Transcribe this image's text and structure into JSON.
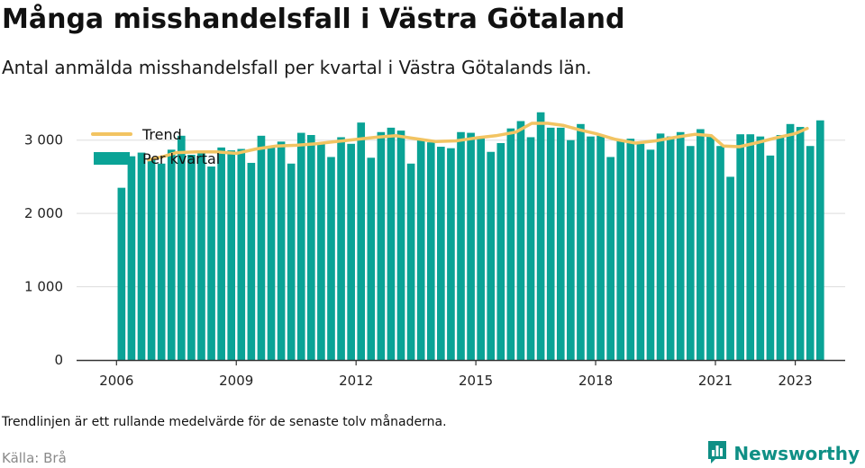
{
  "header": {
    "title": "Många misshandelsfall i Västra Götaland",
    "subtitle": "Antal anmälda misshandelsfall per kvartal i Västra Götalands län."
  },
  "footer": {
    "note": "Trendlinjen är ett rullande medelvärde för de senaste tolv månaderna.",
    "source": "Källa: Brå",
    "brand": "Newsworthy",
    "brand_icon": "bar-chart-icon"
  },
  "colors": {
    "bar": "#0aa396",
    "trend": "#f2c462",
    "grid": "#dddddd",
    "axis": "#333333",
    "brand": "#0f8f85"
  },
  "chart_data": {
    "type": "bar",
    "x_tick_labels": [
      "2006",
      "2009",
      "2012",
      "2015",
      "2018",
      "2021",
      "2023"
    ],
    "y_tick_labels": [
      "0",
      "1 000",
      "2 000",
      "3 000"
    ],
    "y_ticks": [
      0,
      1000,
      2000,
      3000
    ],
    "ylim": [
      0,
      3500
    ],
    "xlim": [
      2005.0,
      2024.25
    ],
    "x_start": 2006.0,
    "legend": {
      "position": "top-left",
      "items": [
        "Trend",
        "Per kvartal"
      ]
    },
    "grid": true,
    "series": [
      {
        "name": "Per kvartal",
        "type": "bar",
        "values": [
          2350,
          2780,
          2830,
          2740,
          2680,
          2870,
          3060,
          2800,
          2840,
          2640,
          2900,
          2860,
          2880,
          2690,
          3060,
          2910,
          2980,
          2680,
          3100,
          3070,
          2960,
          2770,
          3040,
          2950,
          3240,
          2760,
          3110,
          3170,
          3130,
          2680,
          3000,
          2970,
          2910,
          2890,
          3110,
          3100,
          3050,
          2840,
          2960,
          3160,
          3260,
          3040,
          3380,
          3170,
          3170,
          3000,
          3220,
          3050,
          3060,
          2770,
          3000,
          3020,
          2950,
          2870,
          3090,
          3050,
          3110,
          2920,
          3150,
          3050,
          2920,
          2500,
          3080,
          3080,
          3050,
          2790,
          3070,
          3220,
          3180,
          2920,
          3270
        ]
      },
      {
        "name": "Trend",
        "type": "line",
        "points": [
          [
            2006.8,
            2730
          ],
          [
            2007.2,
            2780
          ],
          [
            2007.5,
            2830
          ],
          [
            2008.0,
            2840
          ],
          [
            2008.5,
            2840
          ],
          [
            2009.0,
            2820
          ],
          [
            2009.5,
            2880
          ],
          [
            2010.0,
            2920
          ],
          [
            2010.5,
            2930
          ],
          [
            2011.0,
            2950
          ],
          [
            2011.5,
            2980
          ],
          [
            2012.0,
            3010
          ],
          [
            2012.5,
            3040
          ],
          [
            2013.0,
            3060
          ],
          [
            2013.5,
            3020
          ],
          [
            2014.0,
            2980
          ],
          [
            2014.5,
            2990
          ],
          [
            2015.0,
            3030
          ],
          [
            2015.5,
            3060
          ],
          [
            2016.0,
            3110
          ],
          [
            2016.4,
            3230
          ],
          [
            2016.8,
            3230
          ],
          [
            2017.2,
            3200
          ],
          [
            2017.6,
            3140
          ],
          [
            2018.0,
            3090
          ],
          [
            2018.5,
            3010
          ],
          [
            2019.0,
            2960
          ],
          [
            2019.5,
            2990
          ],
          [
            2020.0,
            3040
          ],
          [
            2020.5,
            3080
          ],
          [
            2020.9,
            3060
          ],
          [
            2021.2,
            2920
          ],
          [
            2021.6,
            2910
          ],
          [
            2022.0,
            2960
          ],
          [
            2022.5,
            3030
          ],
          [
            2023.0,
            3090
          ],
          [
            2023.3,
            3160
          ]
        ]
      }
    ]
  }
}
